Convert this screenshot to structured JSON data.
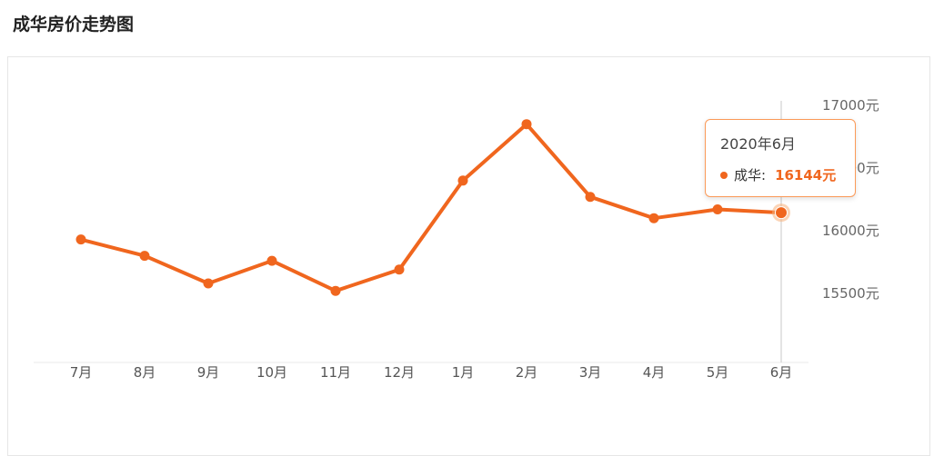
{
  "header": {
    "title": "成华房价走势图"
  },
  "tooltip": {
    "date": "2020年6月",
    "series_label": "成华:",
    "value_text": "16144元"
  },
  "chart_data": {
    "type": "line",
    "title": "成华房价走势图",
    "categories": [
      "7月",
      "8月",
      "9月",
      "10月",
      "11月",
      "12月",
      "1月",
      "2月",
      "3月",
      "4月",
      "5月",
      "6月"
    ],
    "series": [
      {
        "name": "成华",
        "values": [
          15930,
          15800,
          15580,
          15760,
          15520,
          15690,
          16400,
          16850,
          16270,
          16100,
          16170,
          16144
        ]
      }
    ],
    "y_ticks": [
      {
        "value": 17000,
        "label": "17000元"
      },
      {
        "value": 16500,
        "label": "16500元"
      },
      {
        "value": 16000,
        "label": "16000元"
      },
      {
        "value": 15500,
        "label": "15500元"
      }
    ],
    "ylim": [
      15300,
      17050
    ],
    "grid": false,
    "legend_position": "none",
    "line_color": "#f0661e",
    "highlight_halo_color": "#f8b07a",
    "axis_text_color": "#666666",
    "hover_line_color": "#c9c9c9",
    "highlight_index": 11
  }
}
